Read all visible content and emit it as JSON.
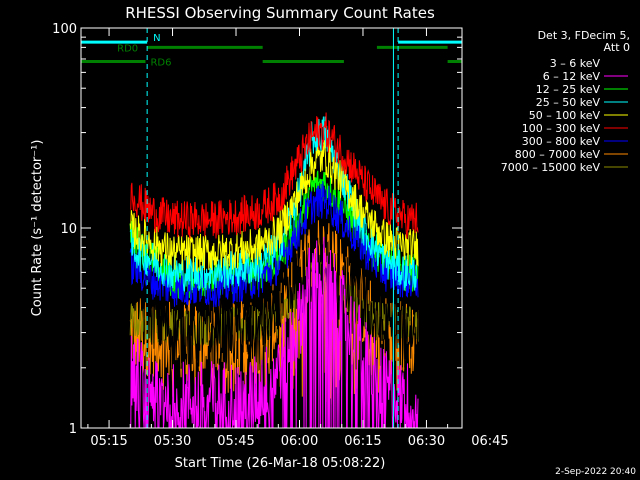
{
  "chart_data": {
    "type": "line",
    "title": "RHESSI Observing Summary Count Rates",
    "xlabel": "Start Time (26-Mar-18 05:08:22)",
    "ylabel": "Count Rate (s⁻¹ detector⁻¹)",
    "yscale": "log",
    "ylim": [
      1,
      100
    ],
    "xlim_minutes": [
      8.37,
      98.4
    ],
    "xticks": [
      {
        "t": 15,
        "label": "05:15"
      },
      {
        "t": 30,
        "label": "05:30"
      },
      {
        "t": 45,
        "label": "05:45"
      },
      {
        "t": 60,
        "label": "06:00"
      },
      {
        "t": 75,
        "label": "06:15"
      },
      {
        "t": 90,
        "label": "06:30"
      },
      {
        "t": 105,
        "label": "06:45"
      }
    ],
    "yticks": [
      {
        "v": 1,
        "label": "1"
      },
      {
        "v": 10,
        "label": "10"
      },
      {
        "v": 100,
        "label": "100"
      }
    ],
    "legend": {
      "placement": "right",
      "header": [
        "Det 3, FDecim 5,",
        "Att 0"
      ]
    },
    "series": [
      {
        "name": "3 – 6 keV",
        "color": "#000000",
        "x": [
          20,
          25,
          30,
          40,
          50,
          55,
          60,
          63,
          66,
          70,
          75,
          80,
          85,
          88
        ],
        "y": [
          6,
          4,
          3,
          3,
          3,
          4,
          5,
          6,
          6,
          5,
          4,
          3,
          3,
          3
        ]
      },
      {
        "name": "6 – 12 keV",
        "color": "#ff00ff",
        "x": [
          20,
          25,
          30,
          40,
          50,
          55,
          60,
          63,
          66,
          70,
          75,
          80,
          85,
          88
        ],
        "y": [
          2,
          1.6,
          1.4,
          1.4,
          1.5,
          2,
          3.5,
          6,
          6,
          4,
          2.5,
          1.6,
          1.4,
          1.4
        ]
      },
      {
        "name": "12 – 25 keV",
        "color": "#00ff00",
        "x": [
          20,
          25,
          30,
          40,
          50,
          55,
          60,
          63,
          66,
          70,
          75,
          80,
          85,
          88
        ],
        "y": [
          9,
          7,
          5.5,
          5.5,
          6,
          7,
          11,
          16,
          17,
          13,
          9,
          7,
          6,
          6
        ]
      },
      {
        "name": "25 – 50 keV",
        "color": "#00ffff",
        "x": [
          20,
          25,
          30,
          40,
          50,
          55,
          60,
          63,
          66,
          70,
          75,
          80,
          85,
          88
        ],
        "y": [
          8,
          7,
          6,
          6,
          6.5,
          8,
          15,
          28,
          30,
          18,
          10,
          7,
          6,
          6
        ]
      },
      {
        "name": "50 – 100 keV",
        "color": "#ffff00",
        "x": [
          20,
          25,
          30,
          40,
          50,
          55,
          60,
          63,
          66,
          70,
          75,
          80,
          85,
          88
        ],
        "y": [
          10,
          8.5,
          7.5,
          7.5,
          8,
          9.5,
          15,
          21,
          23,
          17,
          12,
          9,
          8,
          8
        ]
      },
      {
        "name": "100 – 300 keV",
        "color": "#ff0000",
        "x": [
          20,
          25,
          30,
          40,
          50,
          55,
          60,
          63,
          66,
          70,
          75,
          80,
          85,
          88
        ],
        "y": [
          15,
          12,
          11,
          11,
          12,
          14,
          22,
          29,
          31,
          24,
          17,
          13,
          11,
          11
        ]
      },
      {
        "name": "300 – 800 keV",
        "color": "#0000ff",
        "x": [
          20,
          25,
          30,
          40,
          50,
          55,
          60,
          63,
          66,
          70,
          75,
          80,
          85,
          88
        ],
        "y": [
          6.5,
          5.5,
          5,
          5,
          5.5,
          6.5,
          10,
          13,
          14,
          11,
          8,
          6,
          5.5,
          5.5
        ]
      },
      {
        "name": "800 – 7000 keV",
        "color": "#ff8c00",
        "x": [
          20,
          25,
          30,
          40,
          50,
          55,
          60,
          63,
          66,
          70,
          75,
          80,
          85,
          88
        ],
        "y": [
          3,
          2.8,
          2.8,
          2.8,
          2.9,
          3.5,
          5.5,
          7.5,
          8,
          6,
          4,
          3,
          2.8,
          2.8
        ]
      },
      {
        "name": "7000 – 15000 keV",
        "color": "#8b8b00",
        "x": [
          20,
          25,
          30,
          40,
          50,
          55,
          60,
          63,
          66,
          70,
          75,
          80,
          85,
          88
        ],
        "y": [
          3.5,
          3.3,
          3.2,
          3.2,
          3.3,
          3.6,
          4.5,
          5.5,
          6,
          4.8,
          3.8,
          3.4,
          3.3,
          3.3
        ]
      }
    ],
    "annotations": {
      "night": {
        "label": "N",
        "color": "#00ffff",
        "y": 85,
        "segments": [
          [
            8.37,
            24
          ],
          [
            83.3,
            98.4
          ]
        ]
      },
      "dashed_lines": [
        24,
        83.3,
        98.4
      ],
      "solid_line_t": 82.2,
      "rd_upper": {
        "label": "RD0",
        "color": "#008000",
        "y": 80,
        "segments": [
          [
            24,
            51.3
          ],
          [
            78.3,
            95
          ]
        ]
      },
      "rd_lower": {
        "label": "RD6",
        "color": "#008000",
        "y": 68,
        "segments": [
          [
            8.37,
            23.6
          ],
          [
            51.3,
            70.5
          ],
          [
            95,
            98.4
          ]
        ]
      }
    }
  },
  "footer": {
    "date": "2-Sep-2022 20:40"
  }
}
